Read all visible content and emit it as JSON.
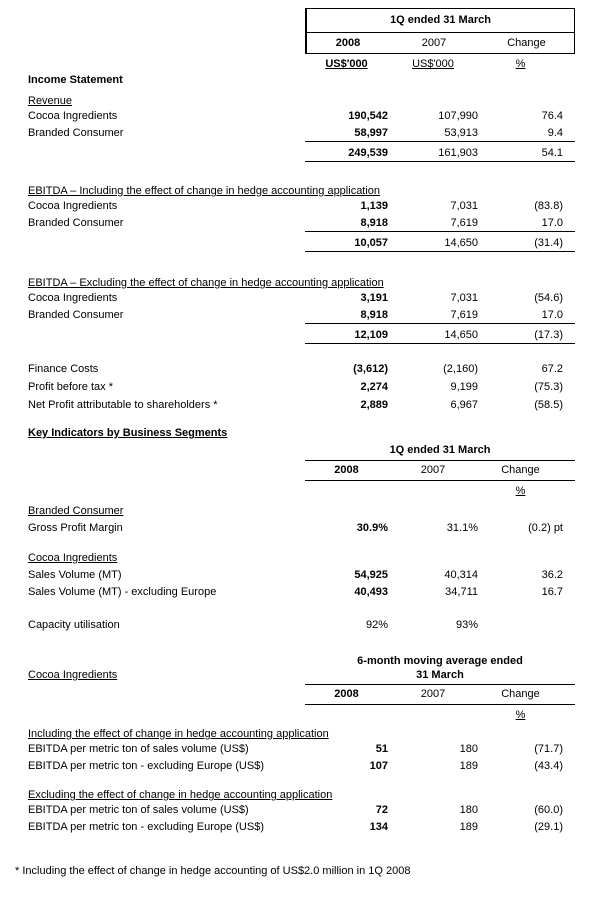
{
  "income_statement": {
    "header": {
      "period": "1Q ended 31 March",
      "year1": "2008",
      "year2": "2007",
      "change_label": "Change",
      "unit1": "US$'000",
      "unit2": "US$'000",
      "unit_change": "%"
    },
    "title": "Income Statement",
    "revenue": {
      "heading": "Revenue",
      "rows": [
        {
          "label": "Cocoa Ingredients",
          "y2008": "190,542",
          "y2007": "107,990",
          "change": "76.4"
        },
        {
          "label": "Branded Consumer",
          "y2008": "58,997",
          "y2007": "53,913",
          "change": "9.4"
        }
      ],
      "total": {
        "y2008": "249,539",
        "y2007": "161,903",
        "change": "54.1"
      }
    },
    "ebitda_including": {
      "heading": "EBITDA – Including the effect of change in hedge accounting application",
      "rows": [
        {
          "label": "Cocoa Ingredients",
          "y2008": "1,139",
          "y2007": "7,031",
          "change": "(83.8)"
        },
        {
          "label": "Branded Consumer",
          "y2008": "8,918",
          "y2007": "7,619",
          "change": "17.0"
        }
      ],
      "total": {
        "y2008": "10,057",
        "y2007": "14,650",
        "change": "(31.4)"
      }
    },
    "ebitda_excluding": {
      "heading": "EBITDA – Excluding the effect of change in hedge accounting application",
      "rows": [
        {
          "label": "Cocoa Ingredients",
          "y2008": "3,191",
          "y2007": "7,031",
          "change": "(54.6)"
        },
        {
          "label": "Branded Consumer",
          "y2008": "8,918",
          "y2007": "7,619",
          "change": "17.0"
        }
      ],
      "total": {
        "y2008": "12,109",
        "y2007": "14,650",
        "change": "(17.3)"
      }
    },
    "other_rows": [
      {
        "label": "Finance Costs",
        "y2008": "(3,612)",
        "y2007": "(2,160)",
        "change": "67.2"
      },
      {
        "label": "Profit before tax *",
        "y2008": "2,274",
        "y2007": "9,199",
        "change": "(75.3)"
      },
      {
        "label": "Net Profit attributable to shareholders *",
        "y2008": "2,889",
        "y2007": "6,967",
        "change": "(58.5)"
      }
    ]
  },
  "key_indicators": {
    "title": "Key Indicators by Business Segments",
    "header": {
      "period": "1Q ended 31 March",
      "year1": "2008",
      "year2": "2007",
      "change_label": "Change",
      "unit_change": "%"
    },
    "branded_consumer": {
      "heading": "Branded Consumer",
      "rows": [
        {
          "label": "Gross Profit Margin",
          "y2008": "30.9%",
          "y2007": "31.1%",
          "change": "(0.2) pt"
        }
      ]
    },
    "cocoa_ingredients": {
      "heading": "Cocoa Ingredients",
      "rows": [
        {
          "label": "Sales Volume (MT)",
          "y2008": "54,925",
          "y2007": "40,314",
          "change": "36.2"
        },
        {
          "label": "Sales Volume (MT) - excluding Europe",
          "y2008": "40,493",
          "y2007": "34,711",
          "change": "16.7"
        }
      ]
    },
    "capacity_row": {
      "label": "Capacity utilisation",
      "y2008": "92%",
      "y2007": "93%",
      "change": ""
    }
  },
  "moving_average": {
    "left_label": "Cocoa Ingredients",
    "header": {
      "period_line1": "6-month moving average ended",
      "period_line2": "31 March",
      "year1": "2008",
      "year2": "2007",
      "change_label": "Change",
      "unit_change": "%"
    },
    "including": {
      "heading": "Including the effect of change in hedge accounting application",
      "rows": [
        {
          "label": "EBITDA per metric ton of sales volume (US$)",
          "y2008": "51",
          "y2007": "180",
          "change": "(71.7)"
        },
        {
          "label": "EBITDA per metric ton - excluding Europe (US$)",
          "y2008": "107",
          "y2007": "189",
          "change": "(43.4)"
        }
      ]
    },
    "excluding": {
      "heading": "Excluding the effect of change in hedge accounting application",
      "rows": [
        {
          "label": "EBITDA per metric ton of sales volume (US$)",
          "y2008": "72",
          "y2007": "180",
          "change": "(60.0)"
        },
        {
          "label": "EBITDA per metric ton - excluding Europe (US$)",
          "y2008": "134",
          "y2007": "189",
          "change": "(29.1)"
        }
      ]
    }
  },
  "footnote": "* Including the effect of change in hedge accounting of US$2.0 million in 1Q 2008"
}
